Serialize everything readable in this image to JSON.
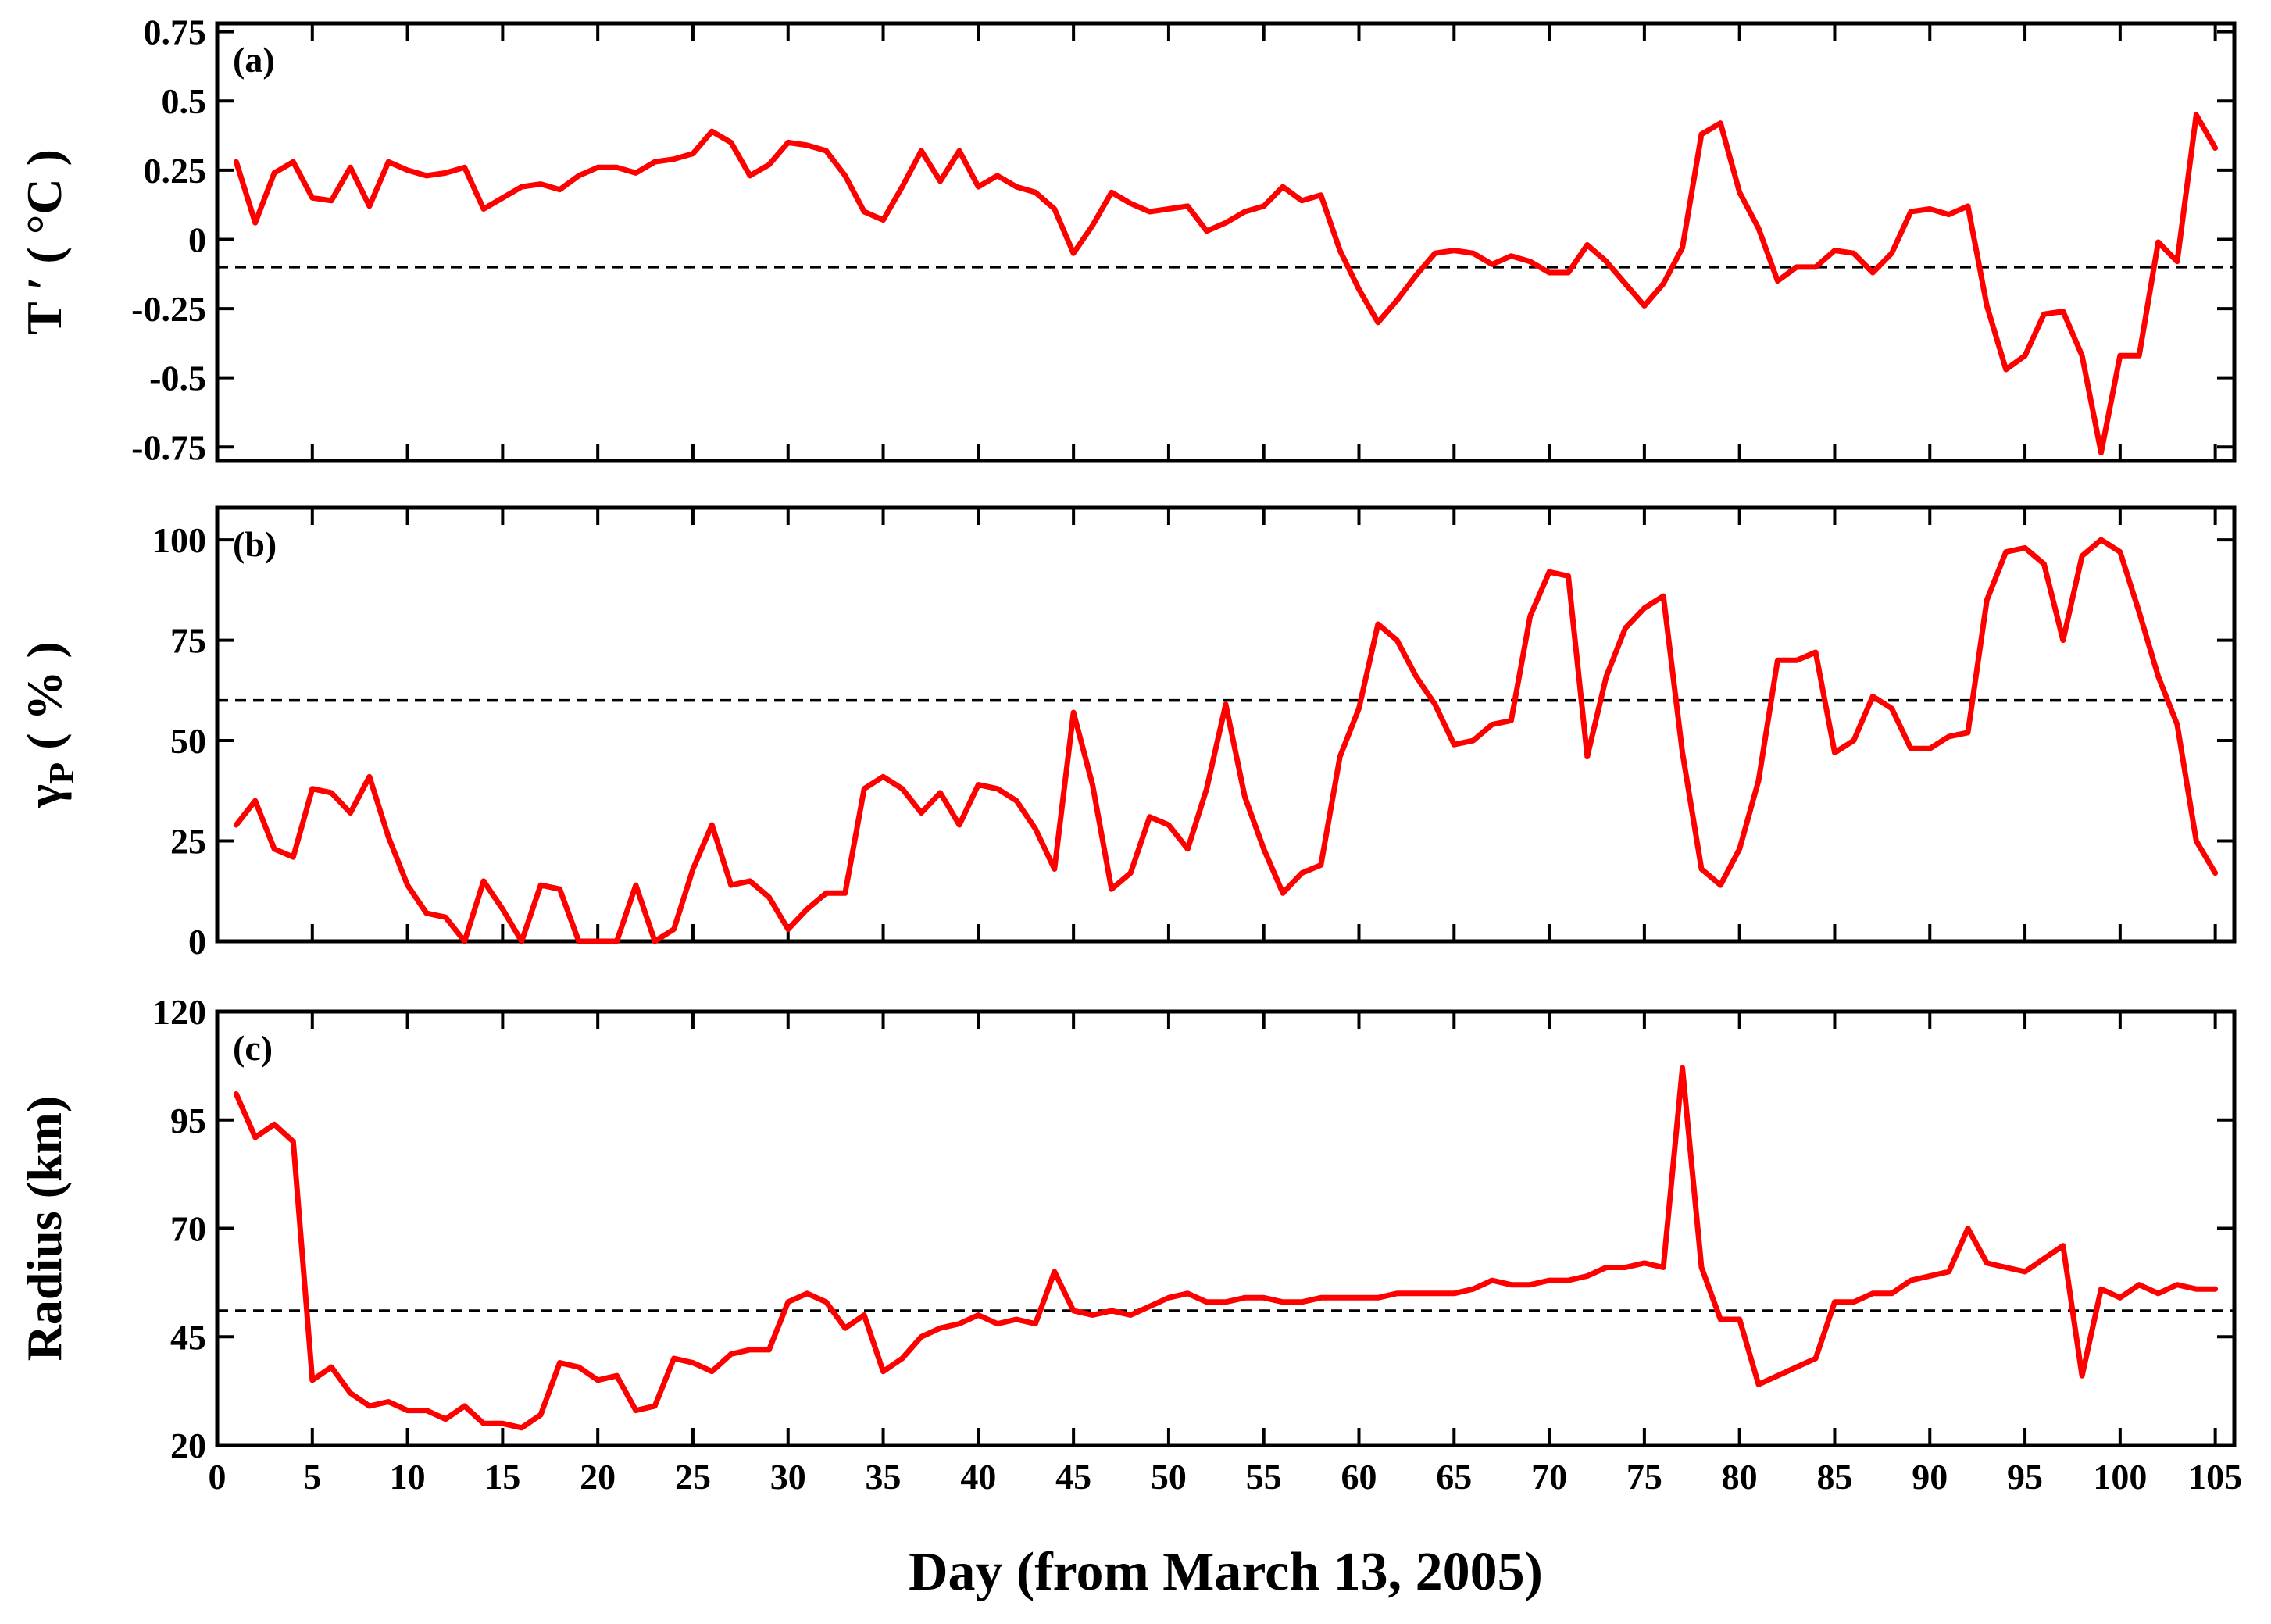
{
  "chart_data": {
    "type": "line",
    "xlabel": "Day (from March 13, 2005)",
    "xlim": [
      0,
      106
    ],
    "xticks": [
      0,
      5,
      10,
      15,
      20,
      25,
      30,
      35,
      40,
      45,
      50,
      55,
      60,
      65,
      70,
      75,
      80,
      85,
      90,
      95,
      100,
      105
    ],
    "xtick_labels": [
      "0",
      "5",
      "10",
      "15",
      "20",
      "25",
      "30",
      "35",
      "40",
      "45",
      "50",
      "55",
      "60",
      "65",
      "70",
      "75",
      "80",
      "85",
      "90",
      "95",
      "100",
      "105"
    ],
    "line_color": "#ff0000",
    "ref_line_color": "#000000",
    "panels": [
      {
        "id": "a",
        "label": "(a)",
        "ylabel_main": "T ′ ( °C )",
        "ylabel_sub": "",
        "ylim": [
          -0.8,
          0.78
        ],
        "yticks": [
          0.75,
          0.5,
          0.25,
          0,
          -0.25,
          -0.5,
          -0.75
        ],
        "ytick_labels": [
          "0.75",
          "0.5",
          "0.25",
          "0",
          "-0.25",
          "-0.5",
          "-0.75"
        ],
        "ref_line": -0.1,
        "series": {
          "name": "T′",
          "x": [
            1,
            2,
            3,
            4,
            5,
            6,
            7,
            8,
            9,
            10,
            11,
            12,
            13,
            14,
            15,
            16,
            17,
            18,
            19,
            20,
            21,
            22,
            23,
            24,
            25,
            26,
            27,
            28,
            29,
            30,
            31,
            32,
            33,
            34,
            35,
            36,
            37,
            38,
            39,
            40,
            41,
            42,
            43,
            44,
            45,
            46,
            47,
            48,
            49,
            50,
            51,
            52,
            53,
            54,
            55,
            56,
            57,
            58,
            59,
            60,
            61,
            62,
            63,
            64,
            65,
            66,
            67,
            68,
            69,
            70,
            71,
            72,
            73,
            74,
            75,
            76,
            77,
            78,
            79,
            80,
            81,
            82,
            83,
            84,
            85,
            86,
            87,
            88,
            89,
            90,
            91,
            92,
            93,
            94,
            95,
            96,
            97,
            98,
            99,
            100,
            101,
            102,
            103,
            104,
            105
          ],
          "values": [
            0.28,
            0.06,
            0.24,
            0.28,
            0.15,
            0.14,
            0.26,
            0.12,
            0.28,
            0.25,
            0.23,
            0.24,
            0.26,
            0.11,
            0.15,
            0.19,
            0.2,
            0.18,
            0.23,
            0.26,
            0.26,
            0.24,
            0.28,
            0.29,
            0.31,
            0.39,
            0.35,
            0.23,
            0.27,
            0.35,
            0.34,
            0.32,
            0.23,
            0.1,
            0.07,
            0.19,
            0.32,
            0.21,
            0.32,
            0.19,
            0.23,
            0.19,
            0.17,
            0.11,
            -0.05,
            0.05,
            0.17,
            0.13,
            0.1,
            0.11,
            0.12,
            0.03,
            0.06,
            0.1,
            0.12,
            0.19,
            0.14,
            0.16,
            -0.04,
            -0.18,
            -0.3,
            -0.22,
            -0.13,
            -0.05,
            -0.04,
            -0.05,
            -0.09,
            -0.06,
            -0.08,
            -0.12,
            -0.12,
            -0.02,
            -0.08,
            -0.16,
            -0.24,
            -0.16,
            -0.03,
            0.38,
            0.42,
            0.17,
            0.04,
            -0.15,
            -0.1,
            -0.1,
            -0.04,
            -0.05,
            -0.12,
            -0.05,
            0.1,
            0.11,
            0.09,
            0.12,
            -0.24,
            -0.47,
            -0.42,
            -0.27,
            -0.26,
            -0.42,
            -0.77,
            -0.42,
            -0.42,
            -0.01,
            -0.08,
            0.45,
            0.33
          ]
        }
      },
      {
        "id": "b",
        "label": "(b)",
        "ylabel_main": "γ",
        "ylabel_sub": "P",
        "ylabel_tail": "( % )",
        "ylim": [
          0,
          108
        ],
        "yticks": [
          100,
          75,
          50,
          25,
          0
        ],
        "ytick_labels": [
          "100",
          "75",
          "50",
          "25",
          "0"
        ],
        "ref_line": 60,
        "series": {
          "name": "γP",
          "x": [
            1,
            2,
            3,
            4,
            5,
            6,
            7,
            8,
            9,
            10,
            11,
            12,
            13,
            14,
            15,
            16,
            17,
            18,
            19,
            20,
            21,
            22,
            23,
            24,
            25,
            26,
            27,
            28,
            29,
            30,
            31,
            32,
            33,
            34,
            35,
            36,
            37,
            38,
            39,
            40,
            41,
            42,
            43,
            44,
            45,
            46,
            47,
            48,
            49,
            50,
            51,
            52,
            53,
            54,
            55,
            56,
            57,
            58,
            59,
            60,
            61,
            62,
            63,
            64,
            65,
            66,
            67,
            68,
            69,
            70,
            71,
            72,
            73,
            74,
            75,
            76,
            77,
            78,
            79,
            80,
            81,
            82,
            83,
            84,
            85,
            86,
            87,
            88,
            89,
            90,
            91,
            92,
            93,
            94,
            95,
            96,
            97,
            98,
            99,
            100,
            101,
            102,
            103,
            104,
            105
          ],
          "values": [
            29,
            35,
            23,
            21,
            38,
            37,
            32,
            41,
            26,
            14,
            7,
            6,
            0,
            15,
            8,
            0,
            14,
            13,
            0,
            0,
            0,
            14,
            0,
            3,
            18,
            29,
            14,
            15,
            11,
            3,
            8,
            12,
            12,
            38,
            41,
            38,
            32,
            37,
            29,
            39,
            38,
            35,
            28,
            18,
            57,
            39,
            13,
            17,
            31,
            29,
            23,
            38,
            59,
            36,
            23,
            12,
            17,
            19,
            46,
            58,
            79,
            75,
            66,
            59,
            49,
            50,
            54,
            55,
            81,
            92,
            91,
            46,
            66,
            78,
            83,
            86,
            47,
            18,
            14,
            23,
            40,
            70,
            70,
            72,
            47,
            50,
            61,
            58,
            48,
            48,
            51,
            52,
            85,
            97,
            98,
            94,
            75,
            96,
            100,
            97,
            82,
            66,
            54,
            25,
            17
          ]
        }
      },
      {
        "id": "c",
        "label": "(c)",
        "ylabel_main": "Radius (km)",
        "ylabel_sub": "",
        "ylim": [
          20,
          120
        ],
        "yticks": [
          120,
          95,
          70,
          45,
          20
        ],
        "ytick_labels": [
          "120",
          "95",
          "70",
          "45",
          "20"
        ],
        "ref_line": 51,
        "series": {
          "name": "Radius",
          "x": [
            1,
            2,
            3,
            4,
            5,
            6,
            7,
            8,
            9,
            10,
            11,
            12,
            13,
            14,
            15,
            16,
            17,
            18,
            19,
            20,
            21,
            22,
            23,
            24,
            25,
            26,
            27,
            28,
            29,
            30,
            31,
            32,
            33,
            34,
            35,
            36,
            37,
            38,
            39,
            40,
            41,
            42,
            43,
            44,
            45,
            46,
            47,
            48,
            49,
            50,
            51,
            52,
            53,
            54,
            55,
            56,
            57,
            58,
            59,
            60,
            61,
            62,
            63,
            64,
            65,
            66,
            67,
            68,
            69,
            70,
            71,
            72,
            73,
            74,
            75,
            76,
            77,
            78,
            79,
            80,
            81,
            82,
            83,
            84,
            85,
            86,
            87,
            88,
            89,
            90,
            91,
            92,
            93,
            94,
            95,
            96,
            97,
            98,
            99,
            100,
            101,
            102,
            103,
            104,
            105
          ],
          "values": [
            101,
            91,
            94,
            90,
            35,
            38,
            32,
            29,
            30,
            28,
            28,
            26,
            29,
            25,
            25,
            24,
            27,
            39,
            38,
            35,
            36,
            28,
            29,
            40,
            39,
            37,
            41,
            42,
            42,
            53,
            55,
            53,
            47,
            50,
            37,
            40,
            45,
            47,
            48,
            50,
            48,
            49,
            48,
            60,
            51,
            50,
            51,
            50,
            52,
            54,
            55,
            53,
            53,
            54,
            54,
            53,
            53,
            54,
            54,
            54,
            54,
            55,
            55,
            55,
            55,
            56,
            58,
            57,
            57,
            58,
            58,
            59,
            61,
            61,
            62,
            61,
            107,
            61,
            49,
            49,
            34,
            36,
            38,
            40,
            53,
            53,
            55,
            55,
            58,
            59,
            60,
            70,
            62,
            61,
            60,
            63,
            66,
            36,
            56,
            54,
            57,
            55,
            57,
            56,
            56
          ]
        }
      }
    ]
  }
}
